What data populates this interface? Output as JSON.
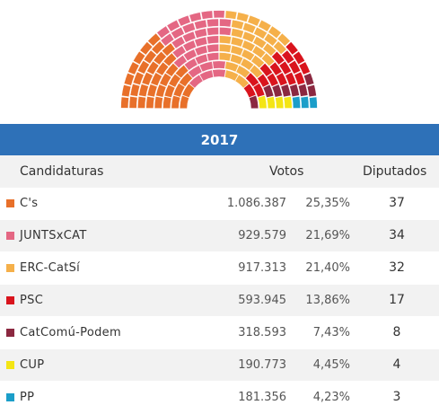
{
  "hemicycle": {
    "rows": 8,
    "parties": [
      {
        "seats": 37,
        "color": "#e8702a"
      },
      {
        "seats": 34,
        "color": "#e46783"
      },
      {
        "seats": 32,
        "color": "#f5b04a"
      },
      {
        "seats": 17,
        "color": "#d9141d"
      },
      {
        "seats": 8,
        "color": "#8b2840"
      },
      {
        "seats": 4,
        "color": "#f4e514"
      },
      {
        "seats": 3,
        "color": "#1b9ec9"
      }
    ]
  },
  "table": {
    "year": "2017",
    "headers": {
      "candidaturas": "Candidaturas",
      "votos": "Votos",
      "diputados": "Diputados"
    },
    "rows": [
      {
        "name": "C's",
        "votes": "1.086.387",
        "pct": "25,35%",
        "seats": "37",
        "color": "#e8702a"
      },
      {
        "name": "JUNTSxCAT",
        "votes": "929.579",
        "pct": "21,69%",
        "seats": "34",
        "color": "#e46783"
      },
      {
        "name": "ERC-CatSí",
        "votes": "917.313",
        "pct": "21,40%",
        "seats": "32",
        "color": "#f5b04a"
      },
      {
        "name": "PSC",
        "votes": "593.945",
        "pct": "13,86%",
        "seats": "17",
        "color": "#d9141d"
      },
      {
        "name": "CatComú-Podem",
        "votes": "318.593",
        "pct": "7,43%",
        "seats": "8",
        "color": "#8b2840"
      },
      {
        "name": "CUP",
        "votes": "190.773",
        "pct": "4,45%",
        "seats": "4",
        "color": "#f4e514"
      },
      {
        "name": "PP",
        "votes": "181.356",
        "pct": "4,23%",
        "seats": "3",
        "color": "#1b9ec9"
      }
    ]
  }
}
